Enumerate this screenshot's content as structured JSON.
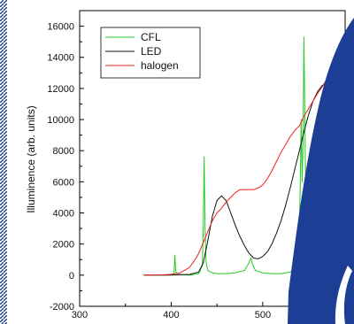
{
  "chart_data": {
    "type": "line",
    "title": "",
    "xlabel": "",
    "ylabel": "Illuminence (arb. units)",
    "xlim": [
      300,
      590
    ],
    "ylim": [
      -2000,
      17000
    ],
    "x_ticks": [
      300,
      400,
      500
    ],
    "y_ticks": [
      -2000,
      0,
      2000,
      4000,
      6000,
      8000,
      10000,
      12000,
      14000,
      16000
    ],
    "x_tick_labels": [
      "300",
      "400",
      "500"
    ],
    "y_tick_labels": [
      "-2000",
      "0",
      "2000",
      "4000",
      "6000",
      "8000",
      "10000",
      "12000",
      "14000",
      "16000"
    ],
    "grid": false,
    "legend_position": "top-left",
    "series": [
      {
        "name": "CFL",
        "color": "#22cc22",
        "points": [
          [
            370,
            0
          ],
          [
            395,
            0
          ],
          [
            403,
            100
          ],
          [
            404,
            1300
          ],
          [
            405,
            200
          ],
          [
            408,
            50
          ],
          [
            420,
            0
          ],
          [
            430,
            100
          ],
          [
            434,
            600
          ],
          [
            435,
            3000
          ],
          [
            436,
            7600
          ],
          [
            437,
            3000
          ],
          [
            438,
            900
          ],
          [
            440,
            300
          ],
          [
            445,
            150
          ],
          [
            450,
            100
          ],
          [
            460,
            100
          ],
          [
            470,
            150
          ],
          [
            480,
            300
          ],
          [
            485,
            800
          ],
          [
            487,
            1100
          ],
          [
            489,
            700
          ],
          [
            492,
            300
          ],
          [
            500,
            150
          ],
          [
            510,
            100
          ],
          [
            520,
            100
          ],
          [
            530,
            200
          ],
          [
            535,
            400
          ],
          [
            538,
            900
          ],
          [
            540,
            2500
          ],
          [
            541,
            6000
          ],
          [
            542,
            10000
          ],
          [
            543,
            6000
          ],
          [
            544,
            8500
          ],
          [
            545,
            15300
          ],
          [
            546,
            10000
          ],
          [
            547,
            5000
          ],
          [
            548,
            2000
          ],
          [
            550,
            700
          ],
          [
            553,
            300
          ],
          [
            556,
            0
          ],
          [
            560,
            0
          ]
        ]
      },
      {
        "name": "LED",
        "color": "#111111",
        "points": [
          [
            370,
            0
          ],
          [
            400,
            0
          ],
          [
            420,
            50
          ],
          [
            430,
            200
          ],
          [
            435,
            800
          ],
          [
            440,
            2200
          ],
          [
            445,
            3800
          ],
          [
            450,
            4800
          ],
          [
            455,
            5100
          ],
          [
            460,
            4800
          ],
          [
            465,
            4000
          ],
          [
            470,
            3200
          ],
          [
            475,
            2500
          ],
          [
            480,
            1900
          ],
          [
            485,
            1400
          ],
          [
            490,
            1100
          ],
          [
            495,
            1050
          ],
          [
            500,
            1200
          ],
          [
            505,
            1500
          ],
          [
            510,
            2000
          ],
          [
            515,
            2700
          ],
          [
            520,
            3500
          ],
          [
            525,
            4500
          ],
          [
            530,
            5600
          ],
          [
            535,
            6800
          ],
          [
            540,
            8000
          ],
          [
            545,
            9200
          ],
          [
            550,
            10300
          ],
          [
            555,
            11200
          ],
          [
            560,
            11800
          ],
          [
            565,
            12200
          ],
          [
            570,
            12300
          ],
          [
            575,
            12100
          ],
          [
            580,
            11500
          ],
          [
            585,
            10000
          ]
        ]
      },
      {
        "name": "halogen",
        "color": "#ee2222",
        "points": [
          [
            370,
            0
          ],
          [
            380,
            0
          ],
          [
            390,
            20
          ],
          [
            400,
            50
          ],
          [
            410,
            150
          ],
          [
            420,
            500
          ],
          [
            425,
            900
          ],
          [
            430,
            1400
          ],
          [
            435,
            2100
          ],
          [
            440,
            2800
          ],
          [
            445,
            3500
          ],
          [
            450,
            4000
          ],
          [
            455,
            4300
          ],
          [
            460,
            4700
          ],
          [
            465,
            5000
          ],
          [
            470,
            5300
          ],
          [
            475,
            5500
          ],
          [
            480,
            5500
          ],
          [
            485,
            5500
          ],
          [
            490,
            5500
          ],
          [
            495,
            5600
          ],
          [
            500,
            5800
          ],
          [
            505,
            6200
          ],
          [
            510,
            6700
          ],
          [
            515,
            7300
          ],
          [
            520,
            7900
          ],
          [
            525,
            8400
          ],
          [
            530,
            8900
          ],
          [
            535,
            9300
          ],
          [
            540,
            9600
          ],
          [
            545,
            10200
          ],
          [
            550,
            10700
          ],
          [
            555,
            11200
          ],
          [
            560,
            11700
          ],
          [
            565,
            12100
          ],
          [
            570,
            12600
          ],
          [
            575,
            12900
          ],
          [
            580,
            12900
          ],
          [
            585,
            12700
          ],
          [
            590,
            12200
          ]
        ]
      }
    ]
  },
  "colors": {
    "border_accent": "#1c3f95",
    "overlay_shape": "#1c3f95"
  }
}
